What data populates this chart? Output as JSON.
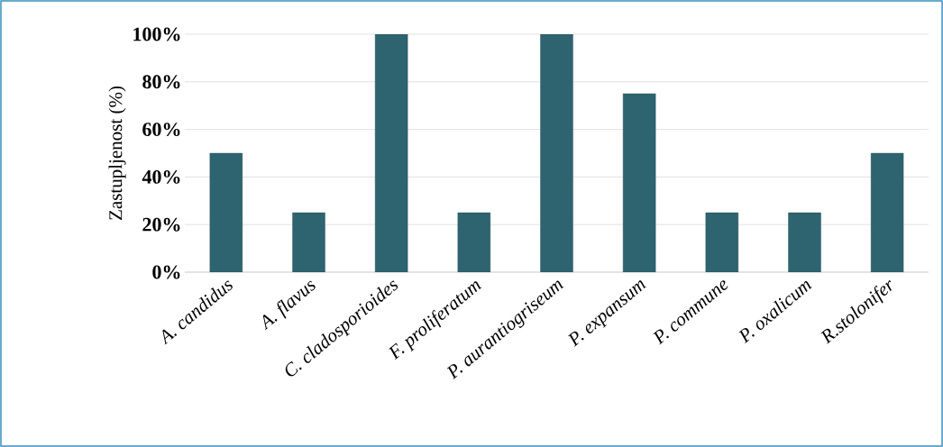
{
  "chart_data": {
    "type": "bar",
    "ylabel": "Zastupljenost (%)",
    "categories": [
      "A. candidus",
      "A. flavus",
      "C. cladosporioides",
      "F. proliferatum",
      "P. aurantiogriseum",
      "P. expansum",
      "P. commune",
      "P. oxalicum",
      "R.stolonifer"
    ],
    "values": [
      50,
      25,
      100,
      25,
      100,
      75,
      25,
      25,
      50
    ],
    "color": "#2e6470",
    "ylim": [
      0,
      100
    ],
    "yticks": [
      {
        "value": 0,
        "label": "0%"
      },
      {
        "value": 20,
        "label": "20%"
      },
      {
        "value": 40,
        "label": "40%"
      },
      {
        "value": 60,
        "label": "60%"
      },
      {
        "value": 80,
        "label": "80%"
      },
      {
        "value": 100,
        "label": "100%"
      }
    ],
    "grid": "y"
  }
}
